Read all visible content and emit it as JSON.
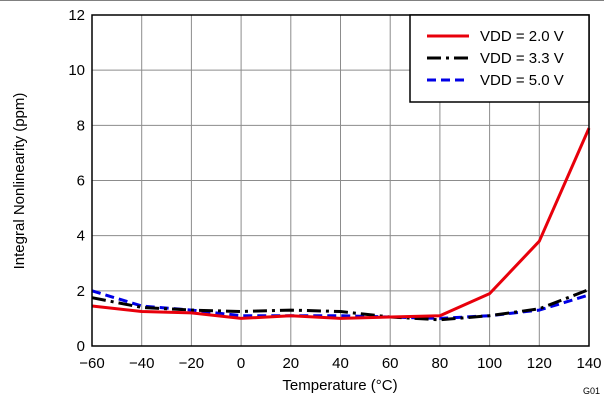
{
  "chart_data": {
    "type": "line",
    "xlabel": "Temperature (°C)",
    "ylabel": "Integral Nonlinearity (ppm)",
    "xlim": [
      -60,
      140
    ],
    "ylim": [
      0,
      12
    ],
    "xticks": [
      -60,
      -40,
      -20,
      0,
      20,
      40,
      60,
      80,
      100,
      120,
      140
    ],
    "yticks": [
      0,
      2,
      4,
      6,
      8,
      10,
      12
    ],
    "xtick_labels": [
      "−60",
      "−40",
      "−20",
      "0",
      "20",
      "40",
      "60",
      "80",
      "100",
      "120",
      "140"
    ],
    "ytick_labels": [
      "0",
      "2",
      "4",
      "6",
      "8",
      "10",
      "12"
    ],
    "grid": true,
    "legend_position": "top-right",
    "figure_code": "G01",
    "series": [
      {
        "name": "VDD = 2.0 V",
        "color": "#e8000b",
        "style": "solid",
        "x": [
          -60,
          -40,
          -20,
          0,
          20,
          40,
          60,
          80,
          100,
          120,
          140
        ],
        "y": [
          1.45,
          1.25,
          1.2,
          1.0,
          1.1,
          1.0,
          1.05,
          1.1,
          1.9,
          3.8,
          7.9
        ]
      },
      {
        "name": "VDD = 3.3 V",
        "color": "#000000",
        "style": "dashdot",
        "x": [
          -60,
          -40,
          -20,
          0,
          20,
          40,
          60,
          80,
          100,
          120,
          140
        ],
        "y": [
          1.75,
          1.4,
          1.3,
          1.25,
          1.3,
          1.25,
          1.05,
          0.95,
          1.1,
          1.35,
          2.05
        ]
      },
      {
        "name": "VDD = 5.0 V",
        "color": "#0000e6",
        "style": "dashed",
        "x": [
          -60,
          -40,
          -20,
          0,
          20,
          40,
          60,
          80,
          100,
          120,
          140
        ],
        "y": [
          2.0,
          1.45,
          1.3,
          1.1,
          1.1,
          1.1,
          1.05,
          1.0,
          1.1,
          1.3,
          1.85
        ]
      }
    ]
  }
}
